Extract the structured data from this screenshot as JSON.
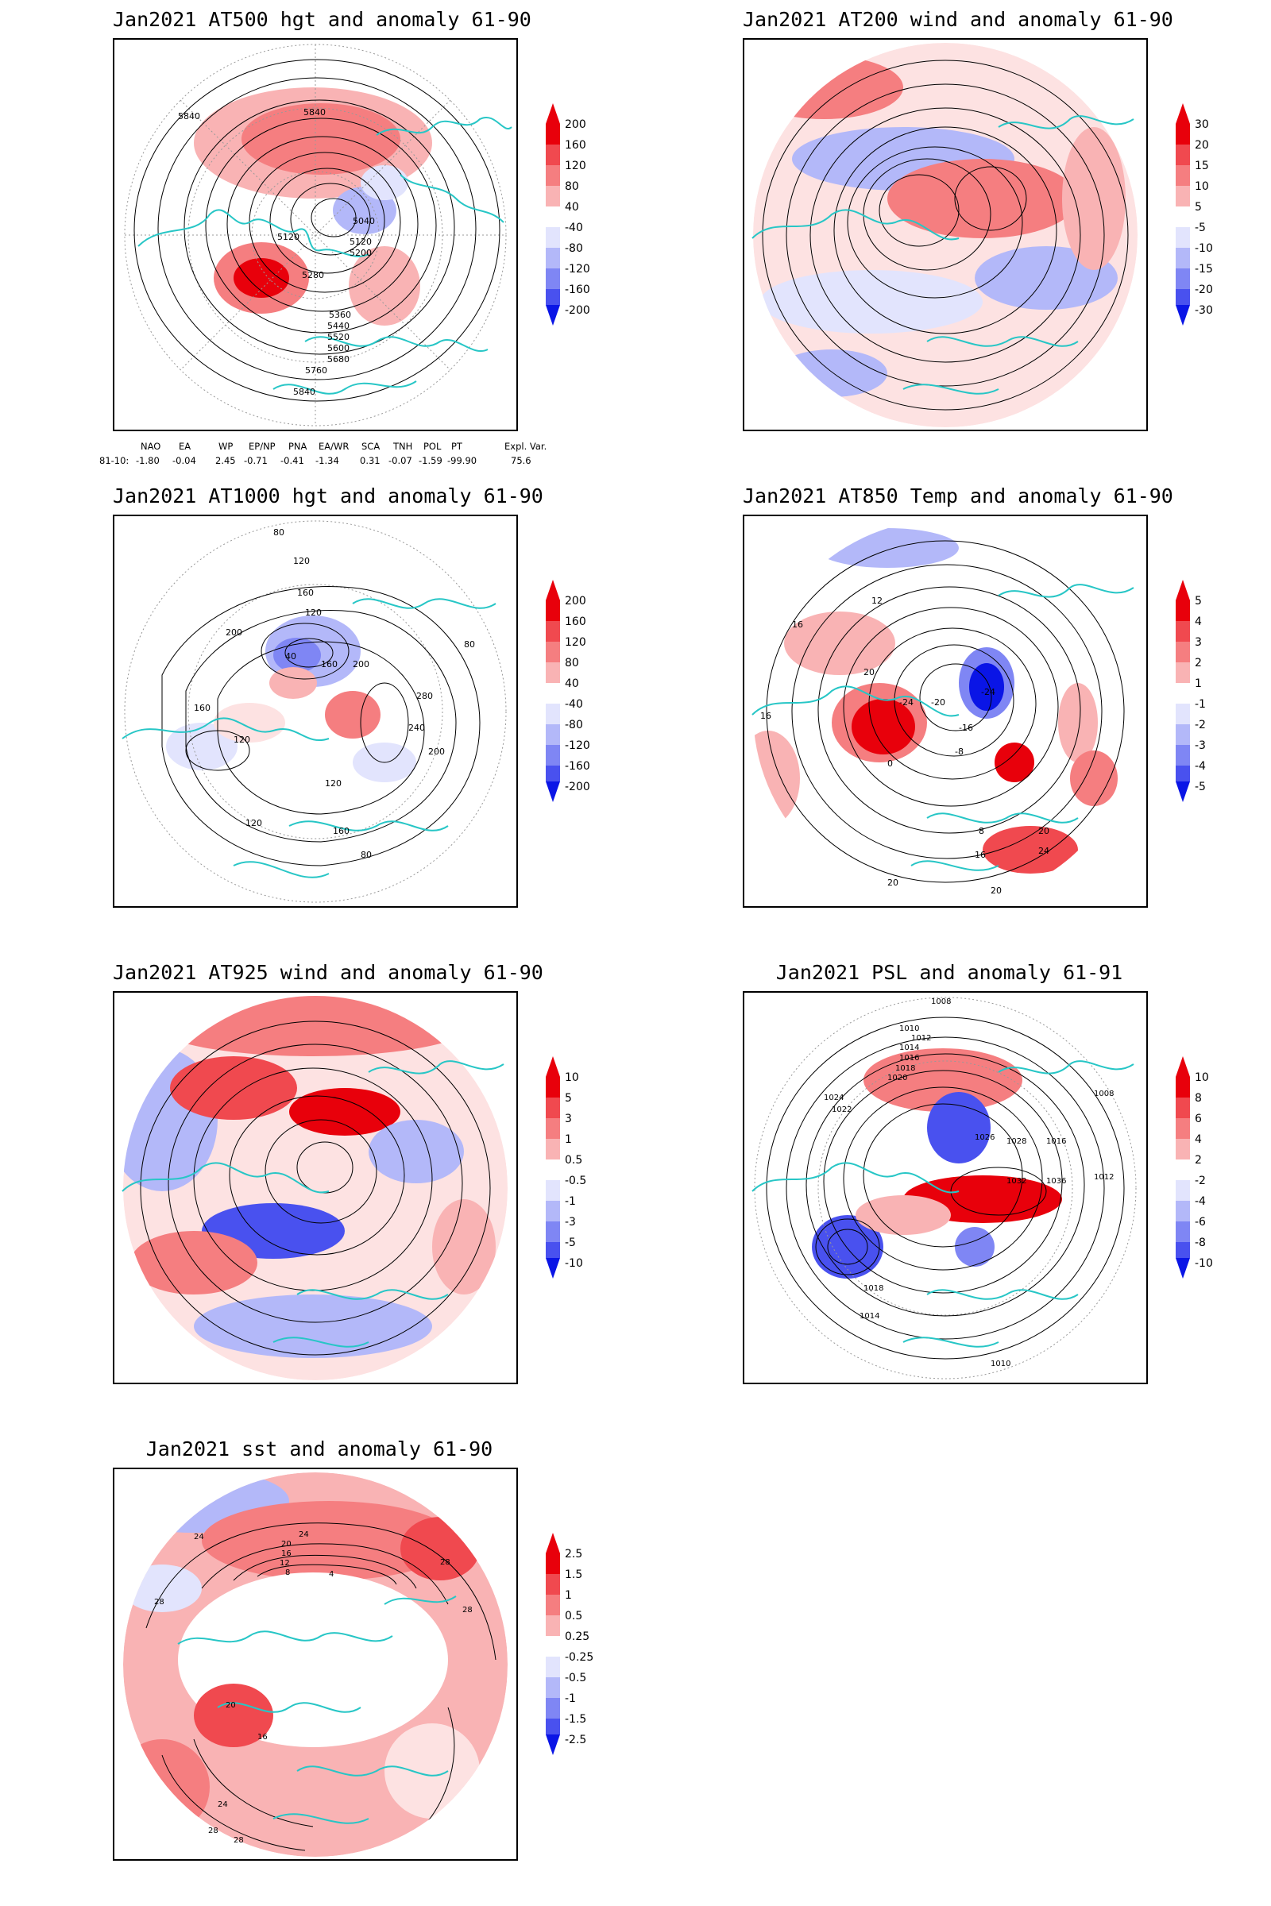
{
  "panels": [
    {
      "title": "Jan2021 AT500 hgt and anomaly 61-90",
      "colorbar": [
        "200",
        "160",
        "120",
        "80",
        "40",
        "-40",
        "-80",
        "-120",
        "-160",
        "-200"
      ],
      "contour_labels": [
        "5840",
        "5840",
        "5040",
        "5120",
        "5120",
        "5200",
        "5280",
        "5360",
        "5440",
        "5520",
        "5600",
        "5680",
        "5760",
        "5840"
      ]
    },
    {
      "title": "Jan2021 AT200 wind and anomaly 61-90",
      "colorbar": [
        "30",
        "20",
        "15",
        "10",
        "5",
        "-5",
        "-10",
        "-15",
        "-20",
        "-30"
      ],
      "contour_labels": []
    },
    {
      "title": "Jan2021 AT1000 hgt and anomaly 61-90",
      "colorbar": [
        "200",
        "160",
        "120",
        "80",
        "40",
        "-40",
        "-80",
        "-120",
        "-160",
        "-200"
      ],
      "contour_labels": [
        "80",
        "120",
        "160",
        "120",
        "200",
        "40",
        "160",
        "200",
        "280",
        "240",
        "200",
        "120",
        "160",
        "120",
        "80",
        "120",
        "160",
        "80"
      ]
    },
    {
      "title": "Jan2021 AT850 Temp and anomaly 61-90",
      "colorbar": [
        "5",
        "4",
        "3",
        "2",
        "1",
        "-1",
        "-2",
        "-3",
        "-4",
        "-5"
      ],
      "contour_labels": [
        "12",
        "16",
        "20",
        "-24",
        "-20",
        "-24",
        "-16",
        "-8",
        "0",
        "16",
        "8",
        "16",
        "20",
        "24",
        "20",
        "20"
      ]
    },
    {
      "title": "Jan2021 AT925 wind and anomaly 61-90",
      "colorbar": [
        "10",
        "5",
        "3",
        "1",
        "0.5",
        "-0.5",
        "-1",
        "-3",
        "-5",
        "-10"
      ],
      "contour_labels": []
    },
    {
      "title": "Jan2021 PSL and anomaly 61-91",
      "colorbar": [
        "10",
        "8",
        "6",
        "4",
        "2",
        "-2",
        "-4",
        "-6",
        "-8",
        "-10"
      ],
      "contour_labels": [
        "1008",
        "1010",
        "1012",
        "1014",
        "1016",
        "1018",
        "1020",
        "1022",
        "1024",
        "1026",
        "1028",
        "1032",
        "1036",
        "1016",
        "1012",
        "1018",
        "1014",
        "1010",
        "1008"
      ]
    },
    {
      "title": "Jan2021 sst and anomaly 61-90",
      "colorbar": [
        "2.5",
        "1.5",
        "1",
        "0.5",
        "0.25",
        "-0.25",
        "-0.5",
        "-1",
        "-1.5",
        "-2.5"
      ],
      "contour_labels": [
        "24",
        "24",
        "20",
        "16",
        "12",
        "8",
        "4",
        "28",
        "28",
        "28",
        "20",
        "16",
        "24",
        "28",
        "28"
      ]
    }
  ],
  "teleconnections": {
    "headers": [
      "NAO",
      "EA",
      "WP",
      "EP/NP",
      "PNA",
      "EA/WR",
      "SCA",
      "TNH",
      "POL",
      "PT",
      "Expl. Var."
    ],
    "row_label": "81-10:",
    "values": [
      "-1.80",
      "-0.04",
      "2.45",
      "-0.71",
      "-0.41",
      "-1.34",
      "0.31",
      "-0.07",
      "-1.59",
      "-99.90",
      "75.6"
    ]
  },
  "colors": {
    "land_outline": "#27c6c6",
    "contour": "#000000",
    "positive_scale": [
      "#e8000b",
      "#f0494f",
      "#f57e80",
      "#f9b3b4",
      "#fde2e2"
    ],
    "negative_scale": [
      "#e2e4fd",
      "#b3b8f9",
      "#7f86f4",
      "#4951ef",
      "#0a15e6"
    ]
  }
}
